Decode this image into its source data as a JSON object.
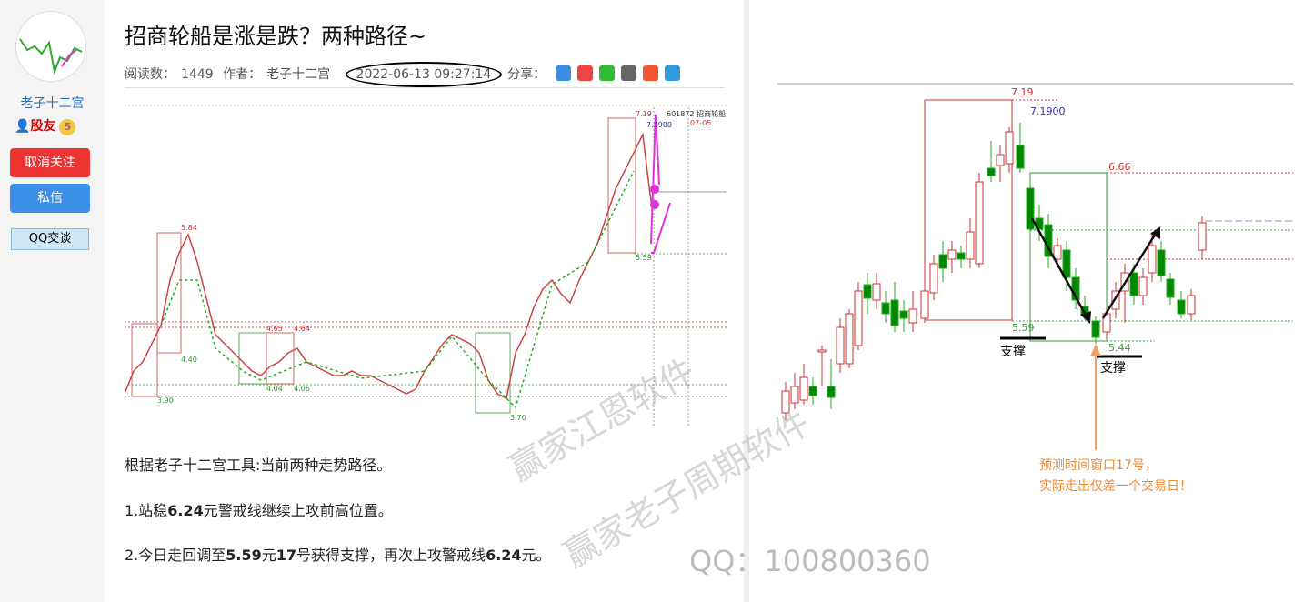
{
  "sidebar": {
    "username": "老子十二宫",
    "badge": "股友",
    "level": "5",
    "buttons": [
      "取消关注",
      "私信"
    ],
    "qq": "QQ交谈"
  },
  "article": {
    "title": "招商轮船是涨是跌？两种路径~",
    "meta": {
      "reads_label": "阅读数：",
      "reads": "1449",
      "author_label": "作者：",
      "author": "老子十二宫",
      "date": "2022-06-13 09:27:14",
      "share_label": "分享："
    },
    "chart_labels": {
      "high": "7.19",
      "target": "7.1900",
      "code": "601872 招商轮船",
      "date_mark": "07-05",
      "l1": "5.84",
      "l2": "4.40",
      "l3": "3.90",
      "l4": "4.65",
      "l5": "4.64",
      "l6": "4.04",
      "l7": "4.06",
      "l8": "3.70",
      "l9": "5.59"
    },
    "paragraphs": [
      [
        "根据老子十二宫工具:当前两种走势路径。"
      ],
      [
        "1.站稳",
        "6.24",
        "元警戒线继续上攻前高位置。"
      ],
      [
        "2.今日走回调至",
        "5.59",
        "元",
        "17",
        "号获得支撑，再次上攻警戒线",
        "6.24",
        "元。"
      ]
    ]
  },
  "right_chart": {
    "labels": {
      "high": "7.19",
      "target": "7.1900",
      "mid": "6.66",
      "low1": "5.59",
      "low2": "5.44"
    },
    "support": [
      "支撑",
      "支撑"
    ],
    "note": [
      "预测时间窗口17号，",
      "实际走出仅差一个交易日！"
    ]
  },
  "watermarks": [
    "赢家江恩软件",
    "赢家老子周期软件",
    "QQ：100800360"
  ]
}
